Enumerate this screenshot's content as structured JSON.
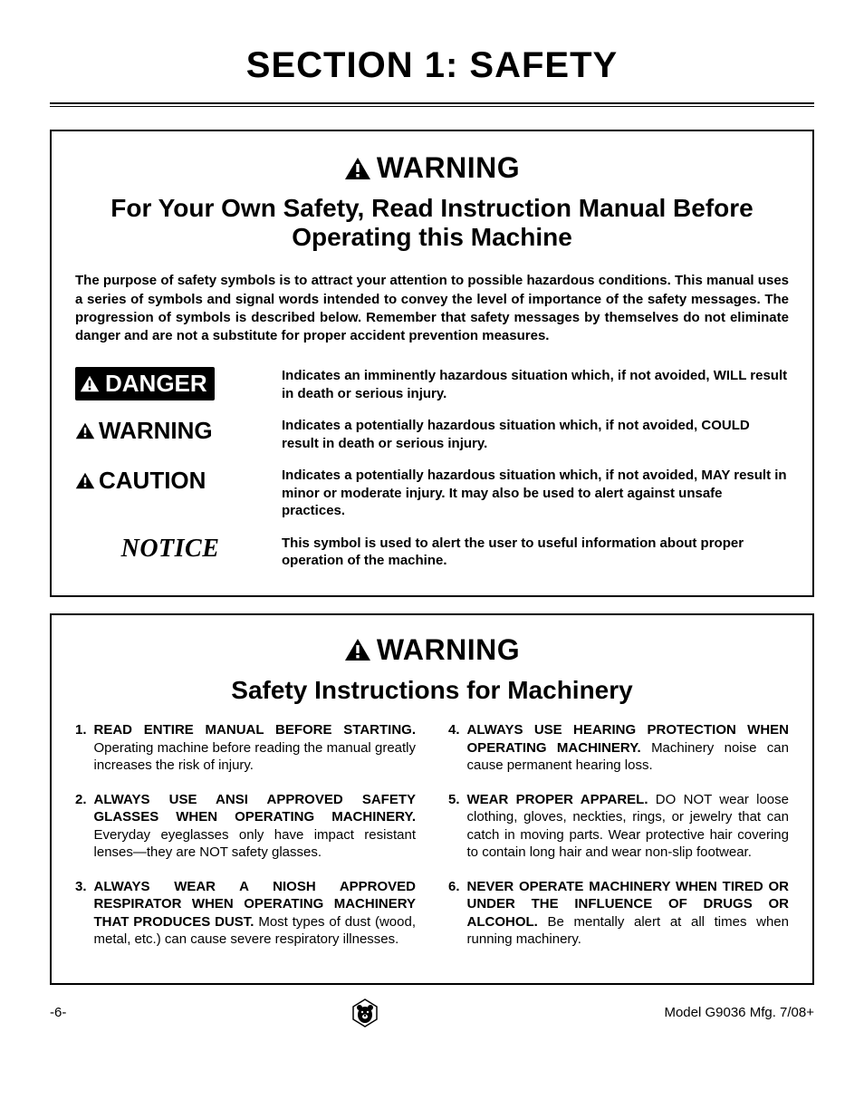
{
  "page": {
    "section_title": "SECTION 1: SAFETY",
    "section_title_fontsize": 40
  },
  "box1": {
    "warning_word": "WARNING",
    "warning_fontsize": 32,
    "subtitle": "For Your Own Safety, Read Instruction Manual Before Operating this Machine",
    "subtitle_fontsize": 28,
    "intro": "The purpose of safety symbols is to attract your attention to possible hazardous conditions. This manual uses a series of symbols and signal words intended to convey the level of importance of the safety messages. The progression of symbols is described below. Remember that safety messages by themselves do not eliminate danger and are not a substitute for proper accident prevention measures.",
    "intro_fontsize": 15,
    "signals": [
      {
        "type": "danger",
        "label": "DANGER",
        "label_fontsize": 26,
        "desc": "Indicates an imminently hazardous situation which, if not avoided, WILL result in death or serious injury.",
        "badge_bg": "#000000",
        "badge_fg": "#ffffff"
      },
      {
        "type": "warning",
        "label": "WARNING",
        "label_fontsize": 26,
        "desc": "Indicates a potentially hazardous situation which, if not avoided, COULD result in death or serious injury."
      },
      {
        "type": "caution",
        "label": "CAUTION",
        "label_fontsize": 26,
        "desc": "Indicates a potentially hazardous situation which, if not avoided, MAY result in minor or moderate injury. It may also be used to alert against unsafe practices."
      },
      {
        "type": "notice",
        "label": "NOTICE",
        "label_fontsize": 28,
        "desc": "This symbol is used to alert the user to useful information about proper operation of the machine."
      }
    ],
    "desc_fontsize": 15
  },
  "box2": {
    "warning_word": "WARNING",
    "warning_fontsize": 32,
    "subtitle": "Safety Instructions for Machinery",
    "subtitle_fontsize": 28,
    "body_fontsize": 15,
    "left": [
      {
        "num": "1.",
        "bold": "READ ENTIRE MANUAL BEFORE STARTING.",
        "rest": " Operating machine before reading the manual greatly increases the risk of injury."
      },
      {
        "num": "2.",
        "bold": "ALWAYS USE ANSI APPROVED SAFETY GLASSES WHEN OPERATING MACHINERY.",
        "rest": " Everyday eyeglasses only have impact resistant lenses—they are NOT safety glasses."
      },
      {
        "num": "3.",
        "bold": "ALWAYS WEAR A NIOSH APPROVED RESPIRATOR WHEN OPERATING MACHINERY THAT PRODUCES DUST.",
        "rest": " Most types of dust (wood, metal, etc.) can cause severe respiratory illnesses."
      }
    ],
    "right": [
      {
        "num": "4.",
        "bold": "ALWAYS USE HEARING PROTECTION WHEN OPERATING MACHINERY.",
        "rest": " Machinery noise can cause permanent hearing loss."
      },
      {
        "num": "5.",
        "bold": "WEAR PROPER APPAREL.",
        "rest": " DO NOT wear loose clothing, gloves, neckties, rings, or jewelry that can catch in moving parts. Wear protective hair covering to contain long hair and wear non-slip footwear."
      },
      {
        "num": "6.",
        "bold": "NEVER OPERATE MACHINERY WHEN TIRED OR UNDER THE INFLUENCE OF DRUGS OR ALCOHOL.",
        "rest": " Be mentally alert at all times when running machinery."
      }
    ]
  },
  "footer": {
    "left": "-6-",
    "right": "Model G9036 Mfg. 7/08+"
  },
  "colors": {
    "text": "#000000",
    "background": "#ffffff",
    "border": "#000000"
  }
}
